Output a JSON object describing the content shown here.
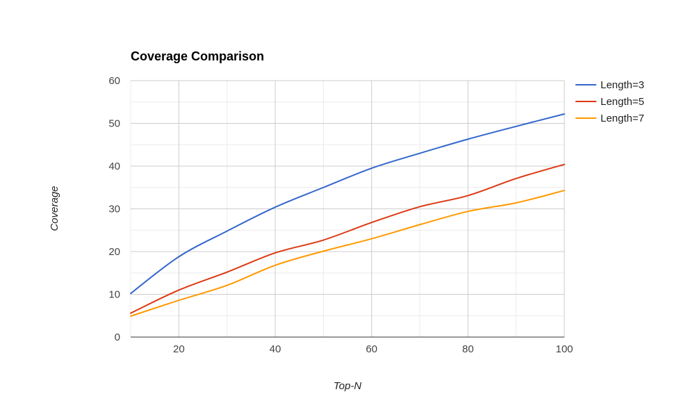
{
  "chart_data": {
    "type": "line",
    "title": "Coverage Comparison",
    "xlabel": "Top-N",
    "ylabel": "Coverage",
    "xlim": [
      10,
      100
    ],
    "ylim": [
      0,
      60
    ],
    "x_ticks": [
      20,
      40,
      60,
      80,
      100
    ],
    "y_ticks": [
      0,
      10,
      20,
      30,
      40,
      50,
      60
    ],
    "grid": true,
    "legend_position": "right",
    "x": [
      10,
      20,
      30,
      40,
      50,
      60,
      70,
      80,
      90,
      100
    ],
    "series": [
      {
        "name": "Length=3",
        "color": "#3366cc",
        "values": [
          10.2,
          18.8,
          24.8,
          30.4,
          35.0,
          39.5,
          43.0,
          46.3,
          49.3,
          52.2
        ]
      },
      {
        "name": "Length=5",
        "color": "#dc3912",
        "values": [
          5.6,
          11.0,
          15.2,
          19.7,
          22.7,
          26.8,
          30.5,
          33.1,
          37.1,
          40.4
        ]
      },
      {
        "name": "Length=7",
        "color": "#ff9900",
        "values": [
          4.9,
          8.6,
          12.1,
          16.8,
          20.1,
          23.0,
          26.3,
          29.4,
          31.4,
          34.3
        ]
      }
    ]
  }
}
